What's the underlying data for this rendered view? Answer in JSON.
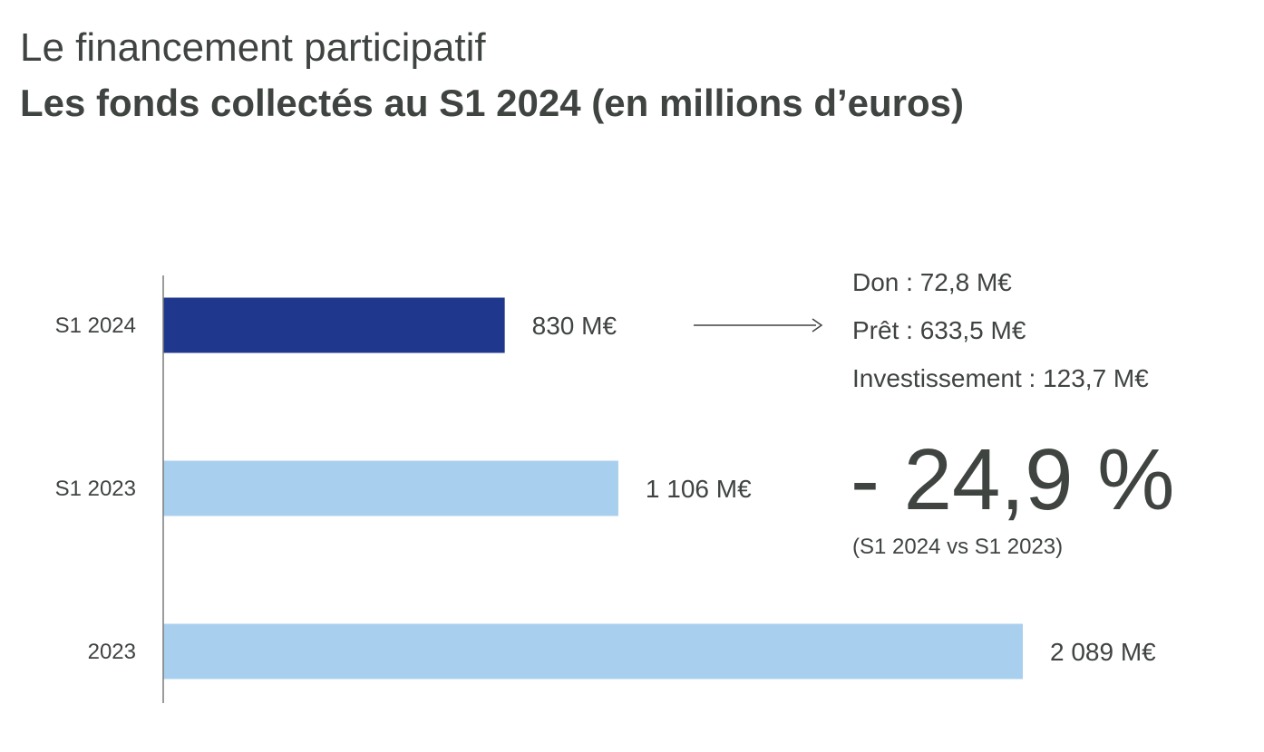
{
  "header": {
    "supertitle": "Le financement participatif",
    "title": "Les fonds collectés au S1 2024 (en millions d’euros)"
  },
  "chart_data": {
    "type": "bar",
    "orientation": "horizontal",
    "title": "Les fonds collectés au S1 2024 (en millions d’euros)",
    "categories": [
      "S1 2024",
      "S1 2023",
      "2023"
    ],
    "values": [
      830,
      1106,
      2089
    ],
    "value_labels": [
      "830 M€",
      "1 106 M€",
      "2 089 M€"
    ],
    "unit": "M€",
    "xlim": [
      0,
      2089
    ],
    "grid": false,
    "colors": {
      "highlight": "#1f378c",
      "default": "#a8cfee",
      "axis": "#7a7a7a",
      "text": "#3f4441"
    }
  },
  "breakdown": {
    "items": [
      "Don : 72,8 M€",
      "Prêt : 633,5 M€",
      "Investissement : 123,7 M€"
    ]
  },
  "change": {
    "value": "- 24,9 %",
    "note": "(S1 2024 vs S1 2023)"
  }
}
